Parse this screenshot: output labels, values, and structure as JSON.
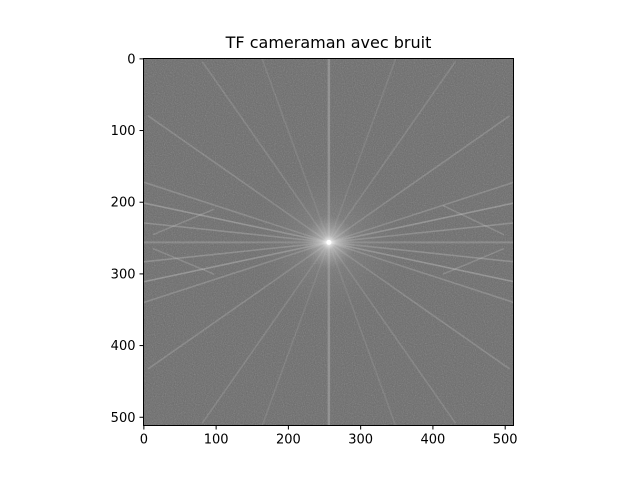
{
  "chart_data": {
    "type": "heatmap",
    "title": "TF cameraman avec bruit",
    "xlabel": "",
    "ylabel": "",
    "colormap": "gray",
    "image_size": [
      512,
      512
    ],
    "xlim": [
      0,
      511
    ],
    "ylim": [
      511,
      0
    ],
    "y_inverted": true,
    "xticks": [
      0,
      100,
      200,
      300,
      400,
      500
    ],
    "yticks": [
      0,
      100,
      200,
      300,
      400,
      500
    ],
    "background_level": "#6a6a6a",
    "peak_level": "#f2f2f2",
    "center": [
      256,
      256
    ],
    "grid": false,
    "legend": "none"
  }
}
